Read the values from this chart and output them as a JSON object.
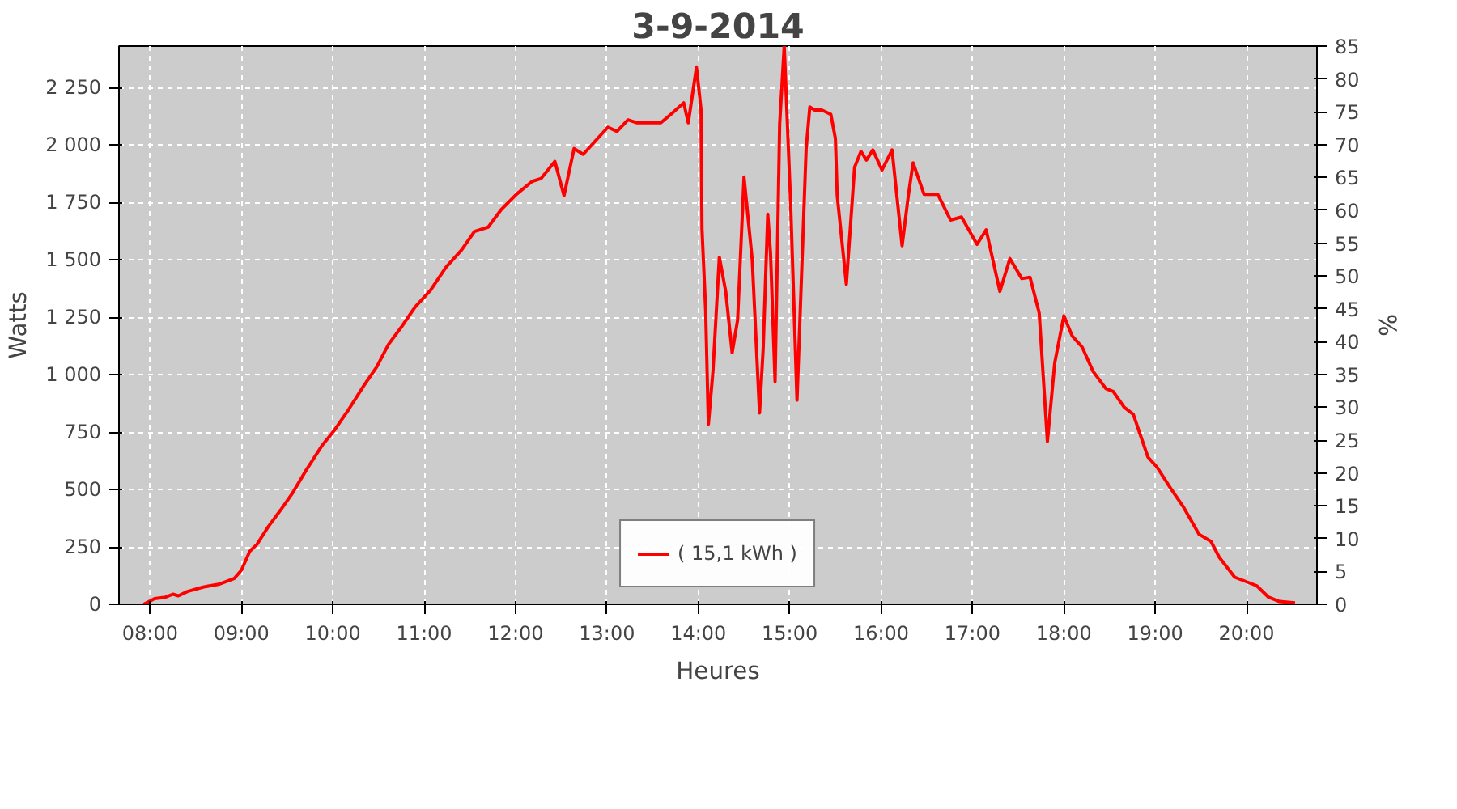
{
  "chart_data": {
    "type": "line",
    "title": "3-9-2014",
    "xlabel": "Heures",
    "ylabel": "Watts",
    "y2label": "%",
    "xlim": [
      7.66,
      20.77
    ],
    "ylim": [
      0,
      2430
    ],
    "y2lim": [
      0,
      85
    ],
    "xticks": [
      {
        "value": 8,
        "label": "08:00"
      },
      {
        "value": 9,
        "label": "09:00"
      },
      {
        "value": 10,
        "label": "10:00"
      },
      {
        "value": 11,
        "label": "11:00"
      },
      {
        "value": 12,
        "label": "12:00"
      },
      {
        "value": 13,
        "label": "13:00"
      },
      {
        "value": 14,
        "label": "14:00"
      },
      {
        "value": 15,
        "label": "15:00"
      },
      {
        "value": 16,
        "label": "16:00"
      },
      {
        "value": 17,
        "label": "17:00"
      },
      {
        "value": 18,
        "label": "18:00"
      },
      {
        "value": 19,
        "label": "19:00"
      },
      {
        "value": 20,
        "label": "20:00"
      }
    ],
    "yticks": [
      0,
      250,
      500,
      750,
      {
        "value": 1000,
        "label": "1 000"
      },
      {
        "value": 1250,
        "label": "1 250"
      },
      {
        "value": 1500,
        "label": "1 500"
      },
      {
        "value": 1750,
        "label": "1 750"
      },
      {
        "value": 2000,
        "label": "2 000"
      },
      {
        "value": 2250,
        "label": "2 250"
      }
    ],
    "y2ticks": [
      0,
      5,
      10,
      15,
      20,
      25,
      30,
      35,
      40,
      45,
      50,
      55,
      60,
      65,
      70,
      75,
      80,
      85
    ],
    "grid": true,
    "legend": "bottom",
    "marker": "none",
    "line_style": "solid",
    "series": [
      {
        "name": "( 15,1 kWh )",
        "color": "#ff0000",
        "x": [
          7.93,
          8.05,
          8.17,
          8.25,
          8.31,
          8.41,
          8.58,
          8.75,
          8.92,
          9.0,
          9.09,
          9.17,
          9.29,
          9.43,
          9.56,
          9.71,
          9.88,
          10.02,
          10.17,
          10.34,
          10.48,
          10.61,
          10.75,
          10.9,
          11.07,
          11.24,
          11.41,
          11.55,
          11.7,
          11.84,
          12.01,
          12.18,
          12.28,
          12.43,
          12.53,
          12.64,
          12.74,
          13.01,
          13.11,
          13.23,
          13.33,
          13.59,
          13.7,
          13.84,
          13.89,
          13.98,
          14.03,
          14.04,
          14.08,
          14.11,
          14.16,
          14.23,
          14.3,
          14.37,
          14.43,
          14.5,
          14.59,
          14.67,
          14.71,
          14.76,
          14.79,
          14.84,
          14.89,
          14.94,
          15.01,
          15.08,
          15.18,
          15.22,
          15.27,
          15.35,
          15.45,
          15.5,
          15.52,
          15.62,
          15.71,
          15.78,
          15.84,
          15.91,
          16.01,
          16.12,
          16.23,
          16.3,
          16.35,
          16.47,
          16.62,
          16.76,
          16.88,
          17.05,
          17.15,
          17.3,
          17.41,
          17.54,
          17.63,
          17.73,
          17.82,
          17.9,
          18.0,
          18.09,
          18.2,
          18.32,
          18.46,
          18.54,
          18.66,
          18.76,
          18.92,
          19.02,
          19.17,
          19.31,
          19.48,
          19.61,
          19.7,
          19.87,
          20.11,
          20.24,
          20.36,
          20.53
        ],
        "values": [
          0,
          25,
          31,
          44,
          37,
          56,
          75,
          87,
          112,
          149,
          230,
          261,
          336,
          411,
          485,
          585,
          690,
          759,
          846,
          952,
          1033,
          1132,
          1207,
          1294,
          1368,
          1468,
          1543,
          1623,
          1642,
          1717,
          1785,
          1841,
          1854,
          1928,
          1779,
          1984,
          1959,
          2077,
          2059,
          2109,
          2096,
          2096,
          2133,
          2183,
          2096,
          2339,
          2152,
          1636,
          1281,
          784,
          1014,
          1511,
          1362,
          1095,
          1238,
          1860,
          1499,
          833,
          1113,
          1698,
          1530,
          970,
          2090,
          2430,
          1748,
          889,
          1984,
          2165,
          2152,
          2152,
          2133,
          2028,
          1779,
          1393,
          1903,
          1972,
          1934,
          1978,
          1891,
          1978,
          1561,
          1785,
          1922,
          1785,
          1785,
          1673,
          1686,
          1567,
          1630,
          1362,
          1505,
          1418,
          1424,
          1269,
          709,
          1051,
          1256,
          1169,
          1120,
          1014,
          939,
          927,
          858,
          827,
          641,
          597,
          504,
          423,
          305,
          274,
          205,
          118,
          81,
          31,
          12,
          6
        ]
      }
    ]
  }
}
